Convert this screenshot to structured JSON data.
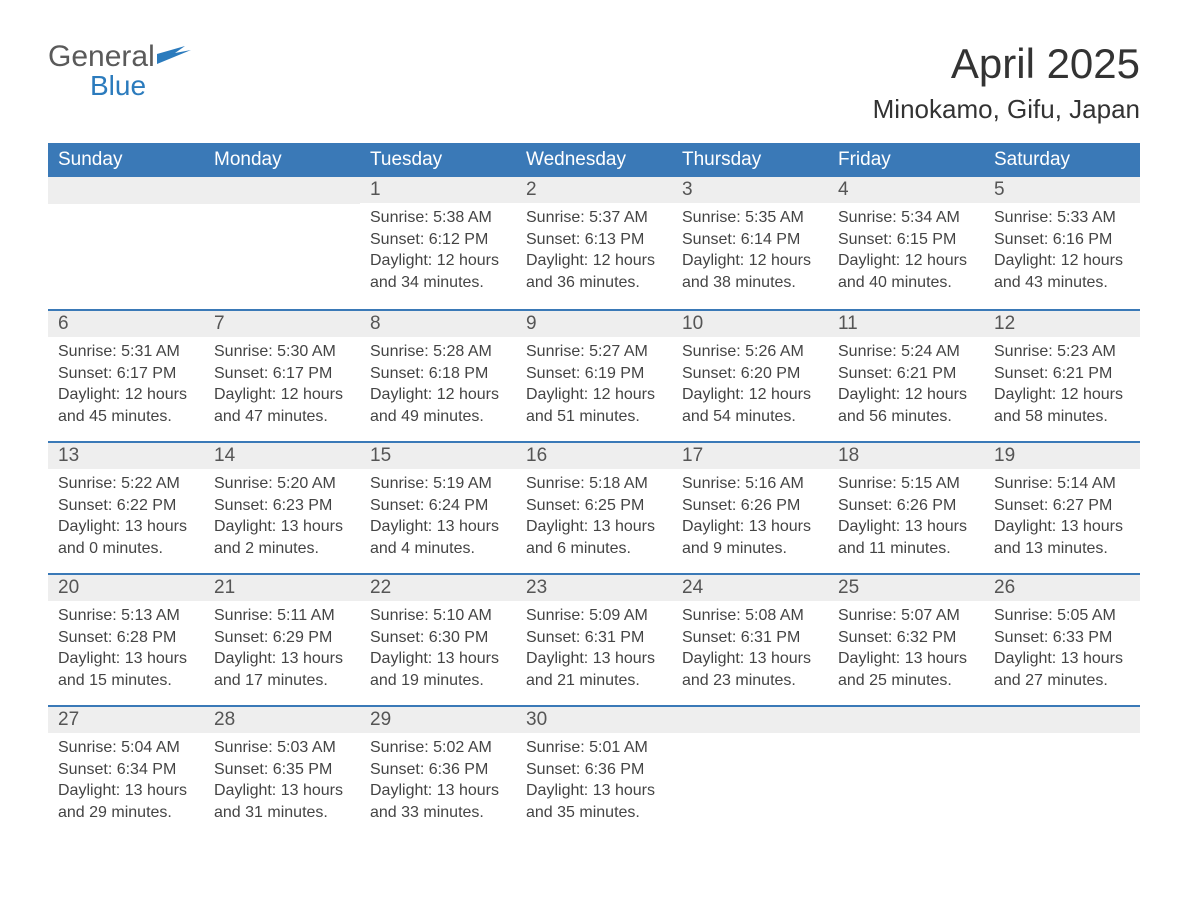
{
  "logo": {
    "general": "General",
    "blue": "Blue"
  },
  "title": "April 2025",
  "location": "Minokamo, Gifu, Japan",
  "colors": {
    "header_bg": "#3a79b7",
    "header_text": "#ffffff",
    "daynum_bg": "#eeeeee",
    "daynum_border": "#3a79b7",
    "body_text": "#444444",
    "logo_gray": "#5a5a5a",
    "logo_blue": "#2b7bbd",
    "page_bg": "#ffffff"
  },
  "typography": {
    "title_fontsize": 42,
    "location_fontsize": 26,
    "dayname_fontsize": 19,
    "daynum_fontsize": 19,
    "body_fontsize": 16
  },
  "labels": {
    "sunrise": "Sunrise:",
    "sunset": "Sunset:",
    "daylight": "Daylight:",
    "hours": "hours",
    "and": "and",
    "minutes": "minutes."
  },
  "day_names": [
    "Sunday",
    "Monday",
    "Tuesday",
    "Wednesday",
    "Thursday",
    "Friday",
    "Saturday"
  ],
  "weeks": [
    [
      null,
      null,
      {
        "n": "1",
        "sunrise": "5:38 AM",
        "sunset": "6:12 PM",
        "dl_h": "12",
        "dl_m": "34"
      },
      {
        "n": "2",
        "sunrise": "5:37 AM",
        "sunset": "6:13 PM",
        "dl_h": "12",
        "dl_m": "36"
      },
      {
        "n": "3",
        "sunrise": "5:35 AM",
        "sunset": "6:14 PM",
        "dl_h": "12",
        "dl_m": "38"
      },
      {
        "n": "4",
        "sunrise": "5:34 AM",
        "sunset": "6:15 PM",
        "dl_h": "12",
        "dl_m": "40"
      },
      {
        "n": "5",
        "sunrise": "5:33 AM",
        "sunset": "6:16 PM",
        "dl_h": "12",
        "dl_m": "43"
      }
    ],
    [
      {
        "n": "6",
        "sunrise": "5:31 AM",
        "sunset": "6:17 PM",
        "dl_h": "12",
        "dl_m": "45"
      },
      {
        "n": "7",
        "sunrise": "5:30 AM",
        "sunset": "6:17 PM",
        "dl_h": "12",
        "dl_m": "47"
      },
      {
        "n": "8",
        "sunrise": "5:28 AM",
        "sunset": "6:18 PM",
        "dl_h": "12",
        "dl_m": "49"
      },
      {
        "n": "9",
        "sunrise": "5:27 AM",
        "sunset": "6:19 PM",
        "dl_h": "12",
        "dl_m": "51"
      },
      {
        "n": "10",
        "sunrise": "5:26 AM",
        "sunset": "6:20 PM",
        "dl_h": "12",
        "dl_m": "54"
      },
      {
        "n": "11",
        "sunrise": "5:24 AM",
        "sunset": "6:21 PM",
        "dl_h": "12",
        "dl_m": "56"
      },
      {
        "n": "12",
        "sunrise": "5:23 AM",
        "sunset": "6:21 PM",
        "dl_h": "12",
        "dl_m": "58"
      }
    ],
    [
      {
        "n": "13",
        "sunrise": "5:22 AM",
        "sunset": "6:22 PM",
        "dl_h": "13",
        "dl_m": "0"
      },
      {
        "n": "14",
        "sunrise": "5:20 AM",
        "sunset": "6:23 PM",
        "dl_h": "13",
        "dl_m": "2"
      },
      {
        "n": "15",
        "sunrise": "5:19 AM",
        "sunset": "6:24 PM",
        "dl_h": "13",
        "dl_m": "4"
      },
      {
        "n": "16",
        "sunrise": "5:18 AM",
        "sunset": "6:25 PM",
        "dl_h": "13",
        "dl_m": "6"
      },
      {
        "n": "17",
        "sunrise": "5:16 AM",
        "sunset": "6:26 PM",
        "dl_h": "13",
        "dl_m": "9"
      },
      {
        "n": "18",
        "sunrise": "5:15 AM",
        "sunset": "6:26 PM",
        "dl_h": "13",
        "dl_m": "11"
      },
      {
        "n": "19",
        "sunrise": "5:14 AM",
        "sunset": "6:27 PM",
        "dl_h": "13",
        "dl_m": "13"
      }
    ],
    [
      {
        "n": "20",
        "sunrise": "5:13 AM",
        "sunset": "6:28 PM",
        "dl_h": "13",
        "dl_m": "15"
      },
      {
        "n": "21",
        "sunrise": "5:11 AM",
        "sunset": "6:29 PM",
        "dl_h": "13",
        "dl_m": "17"
      },
      {
        "n": "22",
        "sunrise": "5:10 AM",
        "sunset": "6:30 PM",
        "dl_h": "13",
        "dl_m": "19"
      },
      {
        "n": "23",
        "sunrise": "5:09 AM",
        "sunset": "6:31 PM",
        "dl_h": "13",
        "dl_m": "21"
      },
      {
        "n": "24",
        "sunrise": "5:08 AM",
        "sunset": "6:31 PM",
        "dl_h": "13",
        "dl_m": "23"
      },
      {
        "n": "25",
        "sunrise": "5:07 AM",
        "sunset": "6:32 PM",
        "dl_h": "13",
        "dl_m": "25"
      },
      {
        "n": "26",
        "sunrise": "5:05 AM",
        "sunset": "6:33 PM",
        "dl_h": "13",
        "dl_m": "27"
      }
    ],
    [
      {
        "n": "27",
        "sunrise": "5:04 AM",
        "sunset": "6:34 PM",
        "dl_h": "13",
        "dl_m": "29"
      },
      {
        "n": "28",
        "sunrise": "5:03 AM",
        "sunset": "6:35 PM",
        "dl_h": "13",
        "dl_m": "31"
      },
      {
        "n": "29",
        "sunrise": "5:02 AM",
        "sunset": "6:36 PM",
        "dl_h": "13",
        "dl_m": "33"
      },
      {
        "n": "30",
        "sunrise": "5:01 AM",
        "sunset": "6:36 PM",
        "dl_h": "13",
        "dl_m": "35"
      },
      null,
      null,
      null
    ]
  ]
}
